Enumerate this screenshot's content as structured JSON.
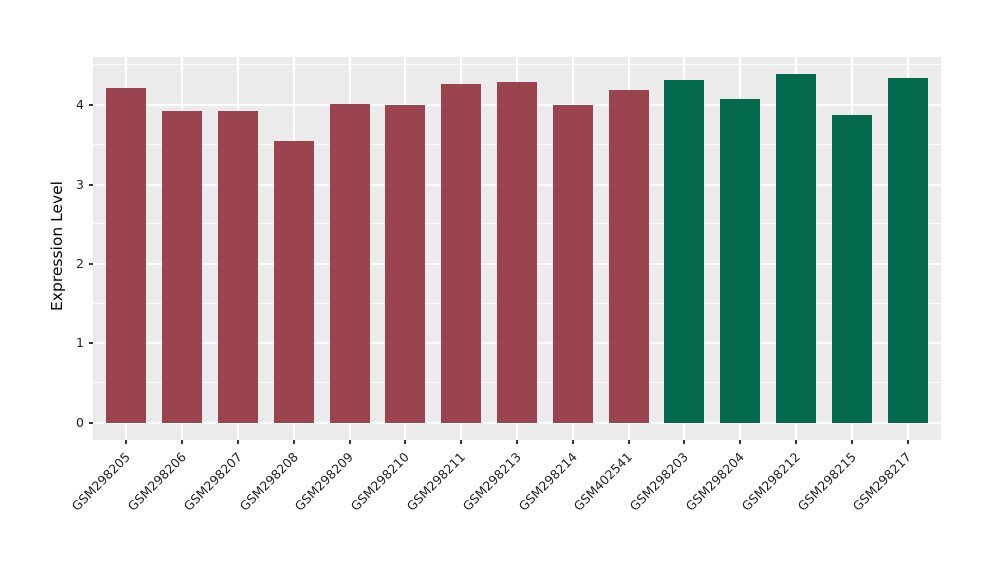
{
  "chart_data": {
    "type": "bar",
    "title": "",
    "xlabel": "",
    "ylabel": "Expression Level",
    "ylim": [
      -0.22,
      4.61
    ],
    "yticks": [
      0,
      1,
      2,
      3,
      4
    ],
    "yticks_minor": [
      0.5,
      1.5,
      2.5,
      3.5,
      4.5
    ],
    "legend": "none",
    "grid": "white major and minor horizontal lines plus vertical category lines on gray panel",
    "categories": [
      "GSM298205",
      "GSM298206",
      "GSM298207",
      "GSM298208",
      "GSM298209",
      "GSM298210",
      "GSM298211",
      "GSM298213",
      "GSM298214",
      "GSM402541",
      "GSM298203",
      "GSM298204",
      "GSM298212",
      "GSM298215",
      "GSM298217"
    ],
    "values": [
      4.21,
      3.92,
      3.93,
      3.55,
      4.01,
      4.0,
      4.27,
      4.29,
      4.0,
      4.19,
      4.32,
      4.08,
      4.39,
      3.87,
      4.34
    ],
    "bar_groups": [
      "maroon",
      "maroon",
      "maroon",
      "maroon",
      "maroon",
      "maroon",
      "maroon",
      "maroon",
      "maroon",
      "maroon",
      "green",
      "green",
      "green",
      "green",
      "green"
    ],
    "group_colors": {
      "maroon": "#9A4450",
      "green": "#036A4D"
    },
    "panel_background": "#EBEBEB",
    "gridline_color": "#FFFFFF",
    "tick_color": "#333333",
    "axis_text_color": "#1F1F1F"
  }
}
